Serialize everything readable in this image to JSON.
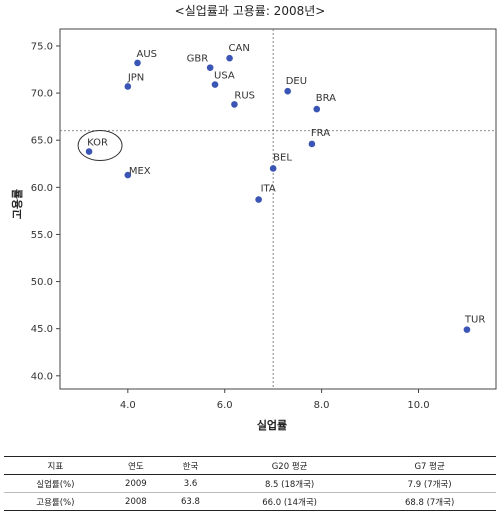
{
  "chart_data": {
    "type": "scatter",
    "title": "<실업률과 고용률: 2008년>",
    "xlabel": "실업률",
    "ylabel": "고용률",
    "xlim": [
      2.6,
      11.6
    ],
    "ylim": [
      38.6,
      76.8
    ],
    "xticks": [
      "4.0",
      "6.0",
      "8.0",
      "10.0"
    ],
    "yticks": [
      "40.0",
      "45.0",
      "50.0",
      "55.0",
      "60.0",
      "65.0",
      "70.0",
      "75.0"
    ],
    "reference_lines": {
      "x": 7.0,
      "y": 66.0
    },
    "highlighted": "KOR",
    "points": [
      {
        "label": "AUS",
        "x": 4.2,
        "y": 73.2
      },
      {
        "label": "JPN",
        "x": 4.0,
        "y": 70.7
      },
      {
        "label": "GBR",
        "x": 5.7,
        "y": 72.7
      },
      {
        "label": "CAN",
        "x": 6.1,
        "y": 73.7
      },
      {
        "label": "USA",
        "x": 5.8,
        "y": 70.9
      },
      {
        "label": "RUS",
        "x": 6.2,
        "y": 68.8
      },
      {
        "label": "DEU",
        "x": 7.3,
        "y": 70.2
      },
      {
        "label": "BRA",
        "x": 7.9,
        "y": 68.3
      },
      {
        "label": "FRA",
        "x": 7.8,
        "y": 64.6
      },
      {
        "label": "KOR",
        "x": 3.2,
        "y": 63.8
      },
      {
        "label": "MEX",
        "x": 4.0,
        "y": 61.3
      },
      {
        "label": "BEL",
        "x": 7.0,
        "y": 62.0
      },
      {
        "label": "ITA",
        "x": 6.7,
        "y": 58.7
      },
      {
        "label": "TUR",
        "x": 11.0,
        "y": 44.9
      }
    ]
  },
  "table": {
    "headers": [
      "지표",
      "연도",
      "한국",
      "G20 평균",
      "G7 평균"
    ],
    "rows": [
      [
        "실업률(%)",
        "2009",
        "3.6",
        "8.5 (18개국)",
        "7.9 (7개국)"
      ],
      [
        "고용률(%)",
        "2008",
        "63.8",
        "66.0 (14개국)",
        "68.8 (7개국)"
      ]
    ]
  },
  "colors": {
    "marker": "#3a55b4",
    "axis": "#333333",
    "refline": "#666666"
  }
}
